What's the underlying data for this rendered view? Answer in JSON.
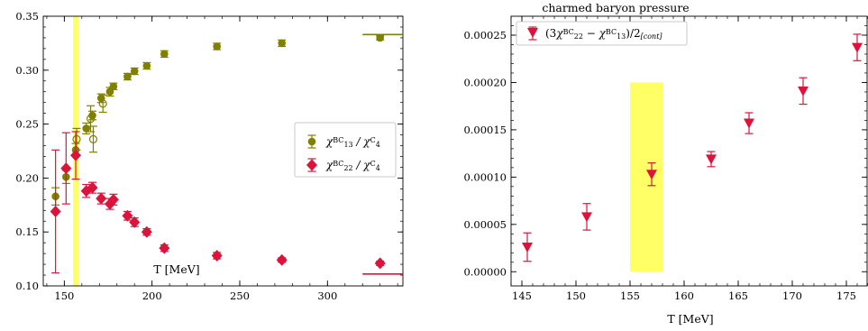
{
  "chart_data": [
    {
      "type": "scatter",
      "title": "",
      "xlabel": "T [MeV]",
      "ylabel": "",
      "xlim": [
        138,
        343
      ],
      "ylim": [
        0.1,
        0.35
      ],
      "xticks": [
        "150",
        "200",
        "250",
        "300"
      ],
      "yticks": [
        "0.10",
        "0.15",
        "0.20",
        "0.25",
        "0.30",
        "0.35"
      ],
      "highlight_band": {
        "x_range": [
          155,
          158
        ],
        "color": "#ffff66"
      },
      "legend_position": "center-right",
      "series": [
        {
          "name_parts": {
            "chi": "χ",
            "sup": "BC",
            "sub": "13",
            "div": " / χ",
            "sup2": "C",
            "sub2": "4"
          },
          "color": "#808000",
          "marker": "circle",
          "points": [
            {
              "x": 145,
              "y": 0.183,
              "err": 0.008
            },
            {
              "x": 151,
              "y": 0.201,
              "err": 0.006
            },
            {
              "x": 156.5,
              "y": 0.226,
              "err": 0.006
            },
            {
              "x": 162.5,
              "y": 0.246,
              "err": 0.005
            },
            {
              "x": 166,
              "y": 0.258,
              "err": 0.004
            },
            {
              "x": 171,
              "y": 0.274,
              "err": 0.004
            },
            {
              "x": 176,
              "y": 0.28,
              "err": 0.004
            },
            {
              "x": 178,
              "y": 0.285,
              "err": 0.003
            },
            {
              "x": 186,
              "y": 0.294,
              "err": 0.003
            },
            {
              "x": 190,
              "y": 0.299,
              "err": 0.003
            },
            {
              "x": 197,
              "y": 0.304,
              "err": 0.003
            },
            {
              "x": 207,
              "y": 0.315,
              "err": 0.003
            },
            {
              "x": 237,
              "y": 0.322,
              "err": 0.003
            },
            {
              "x": 274,
              "y": 0.325,
              "err": 0.003
            },
            {
              "x": 330,
              "y": 0.33,
              "err": 0.002
            }
          ],
          "open_points": [
            {
              "x": 157,
              "y": 0.236,
              "err": 0.01
            },
            {
              "x": 165,
              "y": 0.255,
              "err": 0.012
            },
            {
              "x": 166.5,
              "y": 0.236,
              "err": 0.012
            },
            {
              "x": 172,
              "y": 0.269,
              "err": 0.008
            }
          ],
          "limit": {
            "x_from": 320,
            "x_to": 343,
            "y": 0.333
          }
        },
        {
          "name_parts": {
            "chi": "χ",
            "sup": "BC",
            "sub": "22",
            "div": " / χ",
            "sup2": "C",
            "sub2": "4"
          },
          "color": "#dc143c",
          "marker": "diamond",
          "points": [
            {
              "x": 145,
              "y": 0.169,
              "err": 0.057
            },
            {
              "x": 151,
              "y": 0.209,
              "err": 0.033
            },
            {
              "x": 156.5,
              "y": 0.221,
              "err": 0.022
            },
            {
              "x": 162.5,
              "y": 0.188,
              "err": 0.006
            },
            {
              "x": 166,
              "y": 0.191,
              "err": 0.005
            },
            {
              "x": 171,
              "y": 0.181,
              "err": 0.005
            },
            {
              "x": 176,
              "y": 0.176,
              "err": 0.005
            },
            {
              "x": 178,
              "y": 0.18,
              "err": 0.005
            },
            {
              "x": 186,
              "y": 0.165,
              "err": 0.004
            },
            {
              "x": 190,
              "y": 0.159,
              "err": 0.004
            },
            {
              "x": 197,
              "y": 0.15,
              "err": 0.003
            },
            {
              "x": 207,
              "y": 0.135,
              "err": 0.003
            },
            {
              "x": 237,
              "y": 0.128,
              "err": 0.003
            },
            {
              "x": 274,
              "y": 0.124,
              "err": 0.002
            },
            {
              "x": 330,
              "y": 0.121,
              "err": 0.002
            }
          ],
          "limit": {
            "x_from": 320,
            "x_to": 343,
            "y": 0.111
          }
        }
      ]
    },
    {
      "type": "scatter",
      "title": "charmed baryon pressure",
      "xlabel": "T [MeV]",
      "ylabel": "",
      "xlim": [
        144,
        177
      ],
      "ylim": [
        -1.5e-05,
        0.00027
      ],
      "xticks": [
        "145",
        "150",
        "155",
        "160",
        "165",
        "170",
        "175"
      ],
      "yticks": [
        "0.00000",
        "0.00005",
        "0.00010",
        "0.00015",
        "0.00020",
        "0.00025"
      ],
      "highlight_band": {
        "x_range": [
          155,
          158
        ],
        "y_range": [
          0.0,
          0.0002
        ],
        "color": "#ffff66"
      },
      "legend_position": "top-left",
      "series": [
        {
          "name_parts": {
            "pre": "(3",
            "chi": "χ",
            "sup": "BC",
            "sub": "22",
            "mid": " − χ",
            "sup2": "BC",
            "sub2": "13",
            "post": ")/2",
            "sub3": "[cont]"
          },
          "color": "#dc143c",
          "marker": "triangle-down",
          "points": [
            {
              "x": 145.5,
              "y": 2.6e-05,
              "err": 1.5e-05
            },
            {
              "x": 151,
              "y": 5.8e-05,
              "err": 1.4e-05
            },
            {
              "x": 157,
              "y": 0.000103,
              "err": 1.2e-05
            },
            {
              "x": 162.5,
              "y": 0.000119,
              "err": 8e-06
            },
            {
              "x": 166,
              "y": 0.000157,
              "err": 1.1e-05
            },
            {
              "x": 171,
              "y": 0.000191,
              "err": 1.4e-05
            },
            {
              "x": 176,
              "y": 0.000237,
              "err": 1.4e-05
            }
          ]
        }
      ]
    }
  ]
}
